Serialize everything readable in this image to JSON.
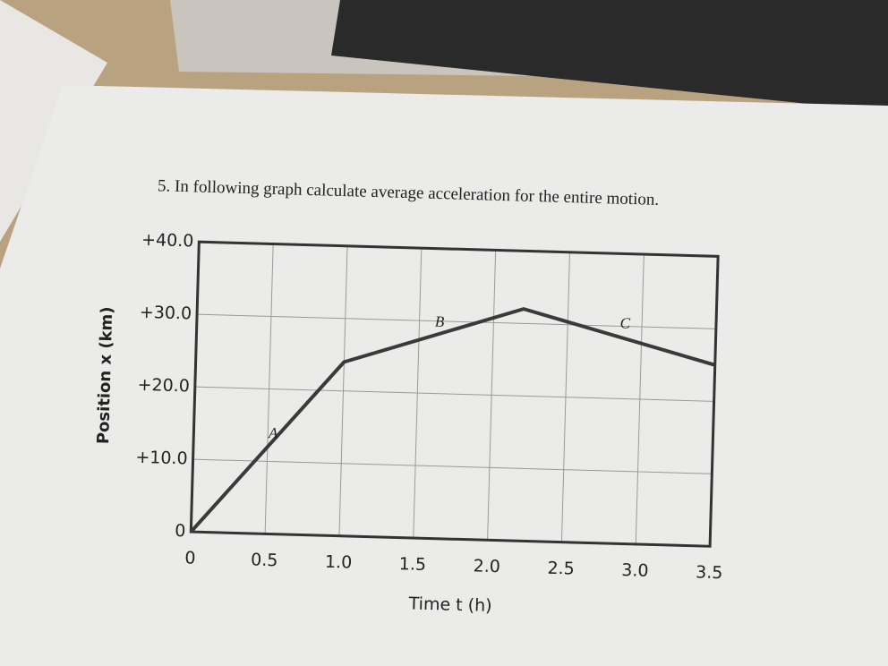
{
  "question": "5. In following graph calculate average acceleration for the entire motion.",
  "chart_data": {
    "type": "line",
    "x_label": "Time t (h)",
    "y_label": "Position x (km)",
    "x": [
      0,
      1.0,
      2.2,
      3.5
    ],
    "values": [
      0,
      24,
      32,
      25
    ],
    "color": "#3a3a3a",
    "segment_labels": [
      "A",
      "B",
      "C"
    ],
    "xlim": [
      0,
      3.5
    ],
    "xticks": [
      0,
      0.5,
      {
        "value": 1,
        "label": "1.0"
      },
      1.5,
      {
        "value": 2,
        "label": "2.0"
      },
      2.5,
      {
        "value": 3,
        "label": "3.0"
      },
      3.5
    ],
    "ylim": [
      0,
      40
    ],
    "yticks": [
      0,
      {
        "value": 10,
        "label": "+10.0"
      },
      {
        "value": 20,
        "label": "+20.0"
      },
      {
        "value": 30,
        "label": "+30.0"
      },
      {
        "value": 40,
        "label": "+40.0"
      }
    ],
    "grid": true
  }
}
